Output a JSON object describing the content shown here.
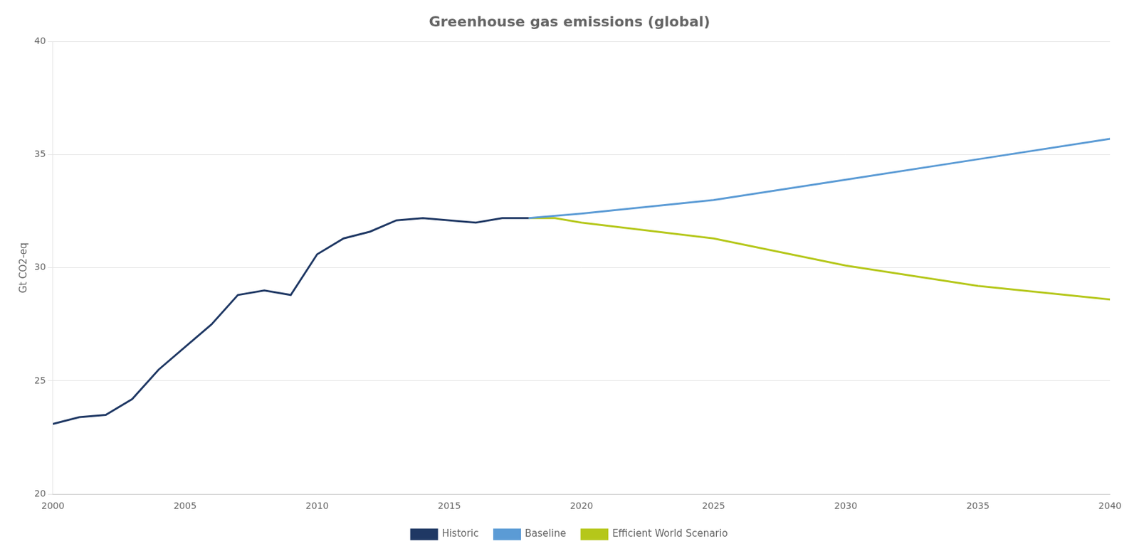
{
  "chart_data": {
    "type": "line",
    "title": "Greenhouse gas emissions (global)",
    "ylabel": "Gt CO2-eq",
    "series": [
      {
        "name": "Historic",
        "color": "#1f3864",
        "x": [
          2000,
          2001,
          2002,
          2003,
          2004,
          2005,
          2006,
          2007,
          2008,
          2009,
          2010,
          2011,
          2012,
          2013,
          2014,
          2015,
          2016,
          2017,
          2018
        ],
        "values": [
          23.1,
          23.4,
          23.5,
          24.2,
          25.5,
          26.5,
          27.5,
          28.8,
          29.0,
          28.8,
          30.6,
          31.3,
          31.6,
          32.1,
          32.2,
          32.1,
          32.0,
          32.2,
          32.2
        ]
      },
      {
        "name": "Baseline",
        "color": "#5b9bd5",
        "x": [
          2018,
          2019,
          2020,
          2025,
          2030,
          2035,
          2040
        ],
        "values": [
          32.2,
          32.3,
          32.4,
          33.0,
          33.9,
          34.8,
          35.7
        ]
      },
      {
        "name": "Efficient World Scenario",
        "color": "#b5c71a",
        "x": [
          2018,
          2019,
          2020,
          2025,
          2030,
          2035,
          2040
        ],
        "values": [
          32.2,
          32.2,
          32.0,
          31.3,
          30.1,
          29.2,
          28.6
        ]
      }
    ],
    "xlim": [
      2000,
      2040
    ],
    "xticks": [
      2000,
      2005,
      2010,
      2015,
      2020,
      2025,
      2030,
      2035,
      2040
    ],
    "ylim": [
      20,
      40
    ],
    "yticks": [
      20,
      25,
      30,
      35,
      40
    ],
    "grid": "y",
    "legend": "bottom"
  }
}
